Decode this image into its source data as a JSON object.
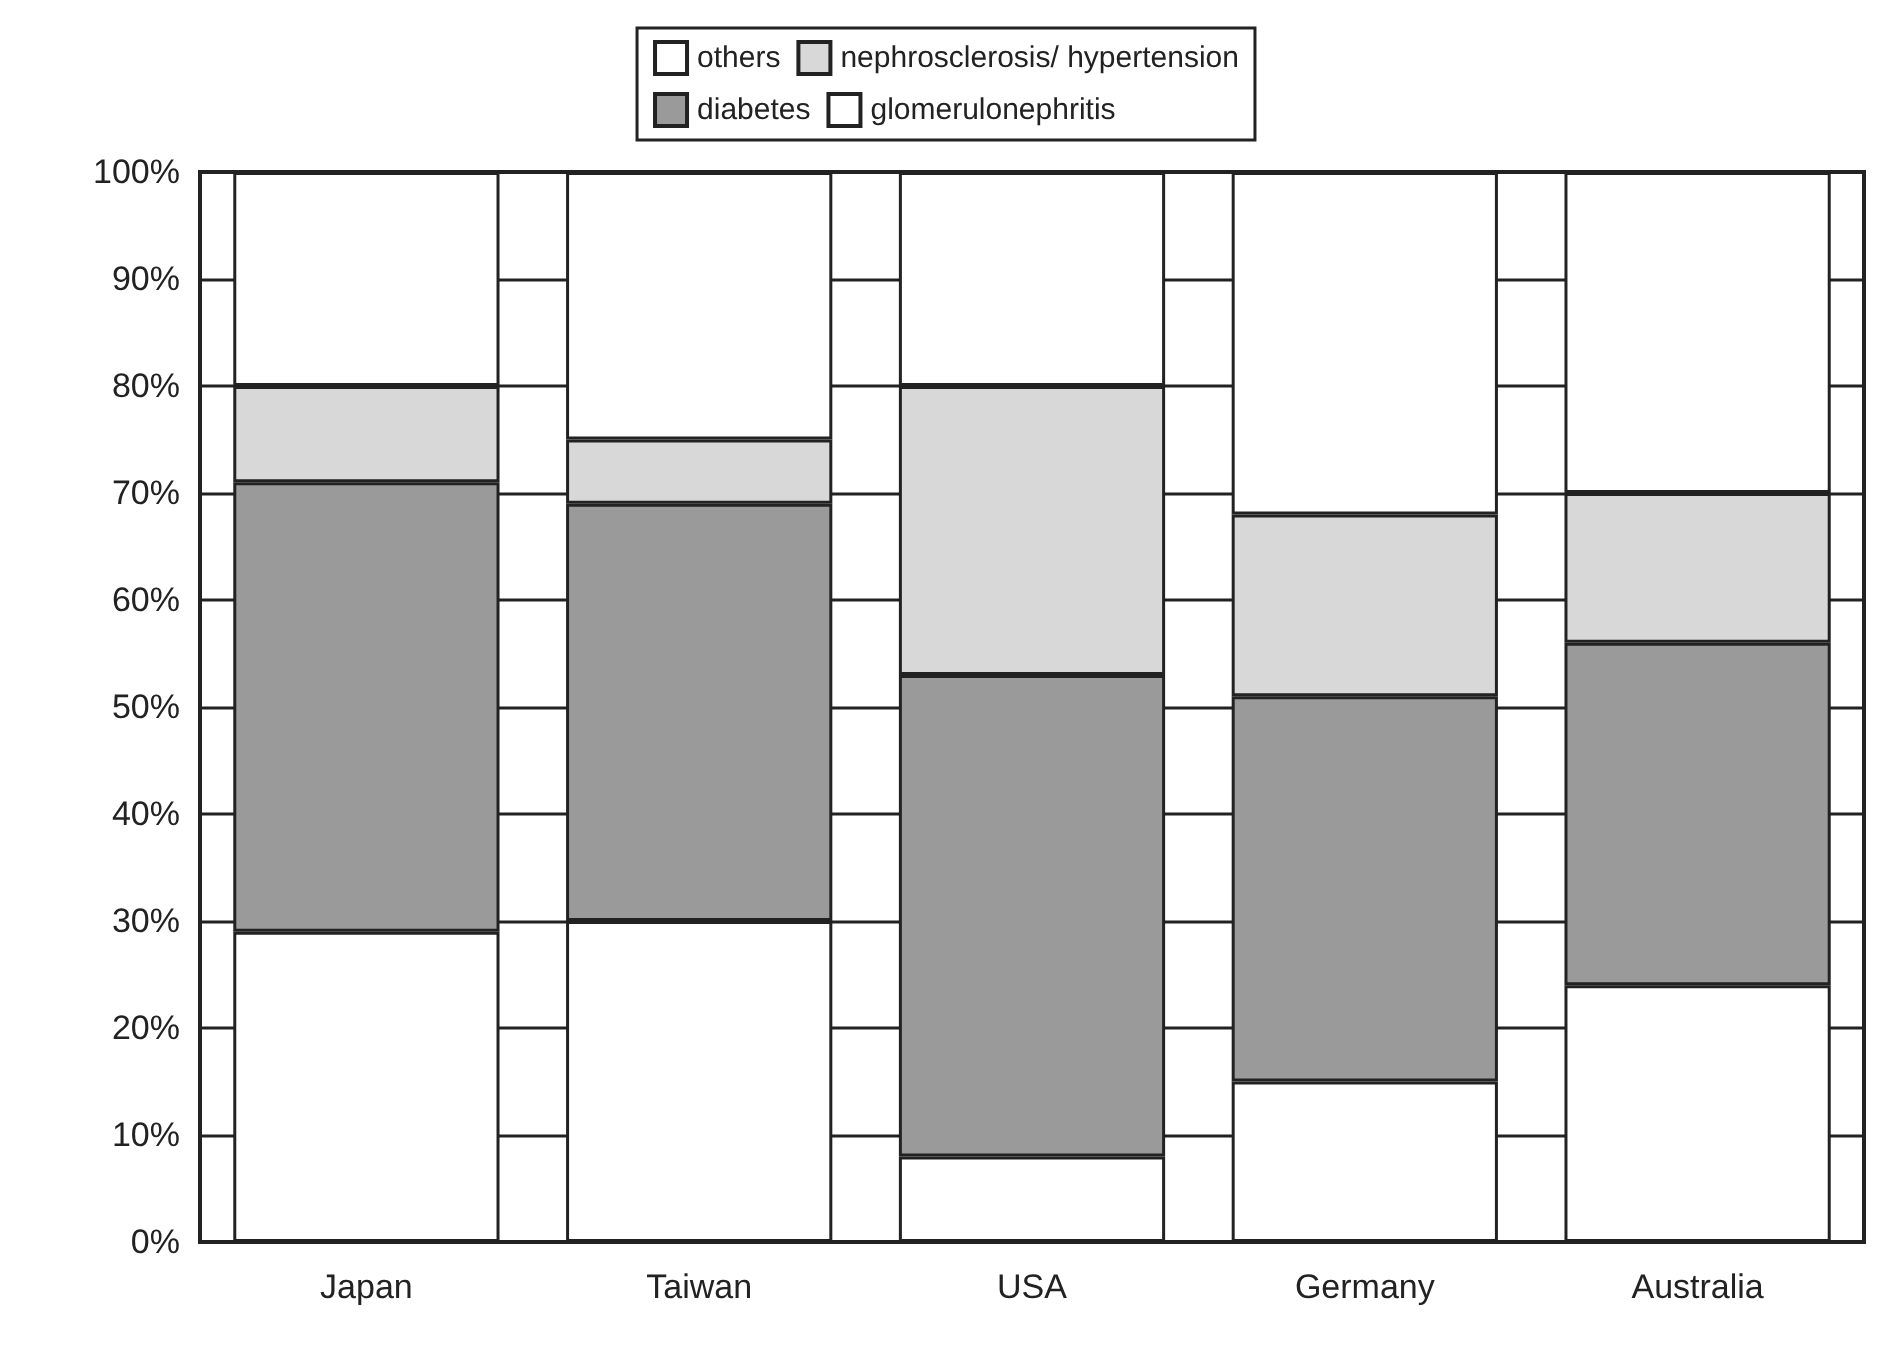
{
  "chart_data": {
    "type": "bar",
    "stacked": true,
    "categories": [
      "Japan",
      "Taiwan",
      "USA",
      "Germany",
      "Australia"
    ],
    "series": [
      {
        "name": "glomerulonephritis",
        "color": "#ffffff",
        "values": [
          29,
          30,
          8,
          15,
          24
        ]
      },
      {
        "name": "diabetes",
        "color": "#9a9a9a",
        "values": [
          42,
          39,
          45,
          36,
          32
        ]
      },
      {
        "name": "nephrosclerosis/ hypertension",
        "color": "#d8d8d8",
        "values": [
          9,
          6,
          27,
          17,
          14
        ]
      },
      {
        "name": "others",
        "color": "#ffffff",
        "values": [
          20,
          25,
          20,
          32,
          30
        ]
      }
    ],
    "ylim": [
      0,
      100
    ],
    "yticks": [
      {
        "value": 0,
        "label": "0%"
      },
      {
        "value": 10,
        "label": "10%"
      },
      {
        "value": 20,
        "label": "20%"
      },
      {
        "value": 30,
        "label": "30%"
      },
      {
        "value": 40,
        "label": "40%"
      },
      {
        "value": 50,
        "label": "50%"
      },
      {
        "value": 60,
        "label": "60%"
      },
      {
        "value": 70,
        "label": "70%"
      },
      {
        "value": 80,
        "label": "80%"
      },
      {
        "value": 90,
        "label": "90%"
      },
      {
        "value": 100,
        "label": "100%"
      }
    ],
    "grid": "y",
    "legend": "top"
  }
}
